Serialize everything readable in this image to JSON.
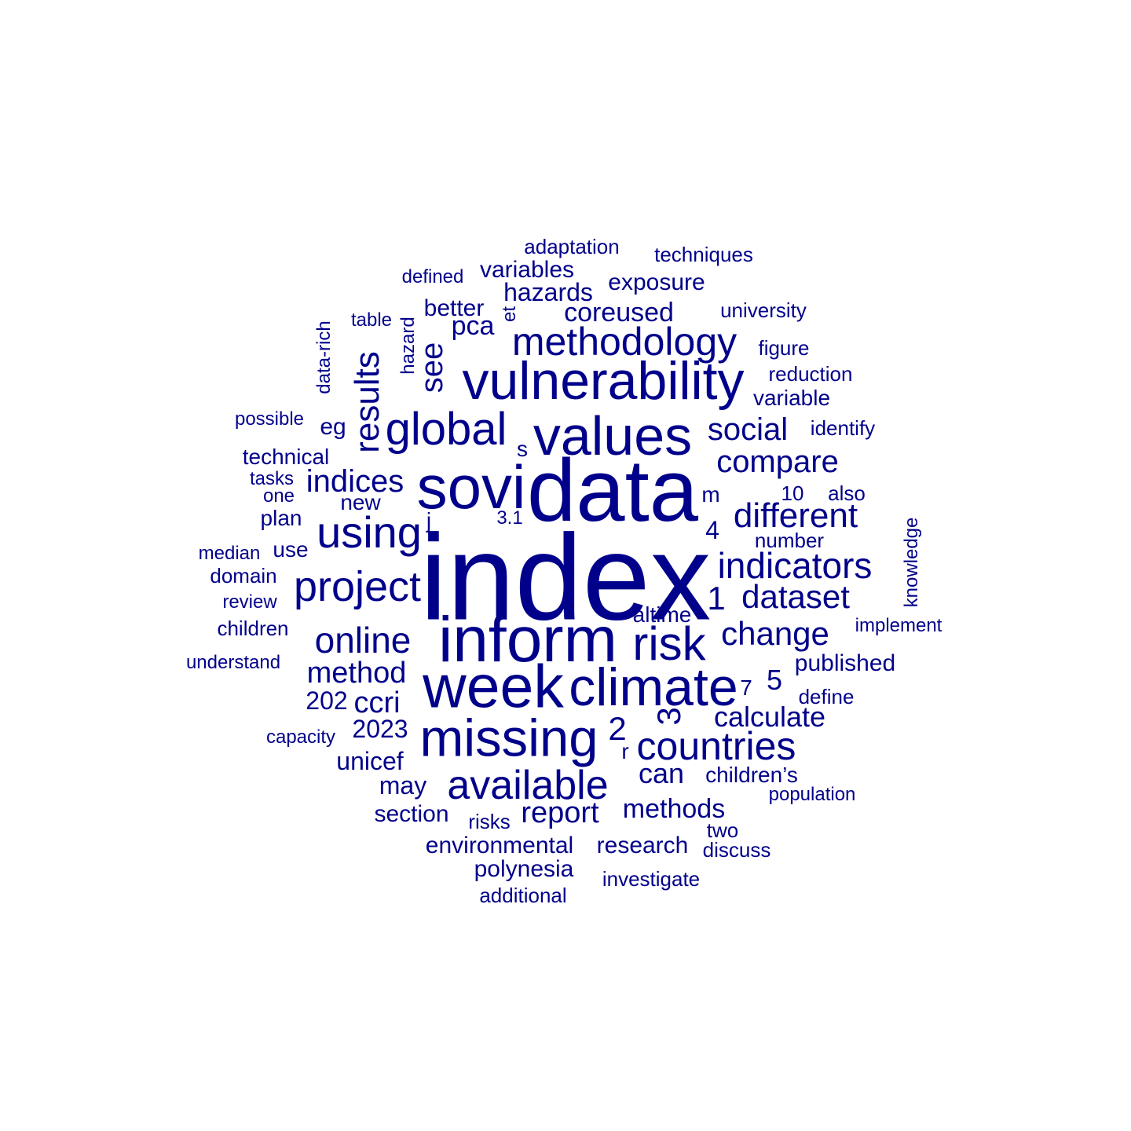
{
  "colors": {
    "primary": "#00008B",
    "background": "#FFFFFF"
  },
  "words": [
    {
      "text": "index",
      "size": 155
    },
    {
      "text": "data",
      "size": 112
    },
    {
      "text": "inform",
      "size": 82
    },
    {
      "text": "sovi",
      "size": 78
    },
    {
      "text": "week",
      "size": 77
    },
    {
      "text": "values",
      "size": 70
    },
    {
      "text": "climate",
      "size": 68
    },
    {
      "text": "vulnerability",
      "size": 68
    },
    {
      "text": "missing",
      "size": 67
    },
    {
      "text": "risk",
      "size": 60
    },
    {
      "text": "global",
      "size": 58
    },
    {
      "text": "using",
      "size": 56
    },
    {
      "text": "project",
      "size": 54
    },
    {
      "text": "available",
      "size": 52
    },
    {
      "text": "methodology",
      "size": 50
    },
    {
      "text": "countries",
      "size": 50
    },
    {
      "text": "indicators",
      "size": 46
    },
    {
      "text": "online",
      "size": 46
    },
    {
      "text": "results",
      "size": 44,
      "vertical": true
    },
    {
      "text": "different",
      "size": 44
    },
    {
      "text": "change",
      "size": 42
    },
    {
      "text": "dataset",
      "size": 42
    },
    {
      "text": "1",
      "size": 42
    },
    {
      "text": "2",
      "size": 42
    },
    {
      "text": "3",
      "size": 42,
      "vertical": true
    },
    {
      "text": "indices",
      "size": 40
    },
    {
      "text": "see",
      "size": 40,
      "vertical": true
    },
    {
      "text": "social",
      "size": 40
    },
    {
      "text": "compare",
      "size": 40
    },
    {
      "text": "method",
      "size": 38
    },
    {
      "text": "ccri",
      "size": 38
    },
    {
      "text": "report",
      "size": 38
    },
    {
      "text": "can",
      "size": 36
    },
    {
      "text": "calculate",
      "size": 36
    },
    {
      "text": "methods",
      "size": 34
    },
    {
      "text": "pca",
      "size": 34
    },
    {
      "text": "coreused",
      "size": 34
    },
    {
      "text": "hazards",
      "size": 32
    },
    {
      "text": "5",
      "size": 36
    },
    {
      "text": "2023",
      "size": 32
    },
    {
      "text": "202",
      "size": 32
    },
    {
      "text": "unicef",
      "size": 32
    },
    {
      "text": "may",
      "size": 32
    },
    {
      "text": "section",
      "size": 30
    },
    {
      "text": "published",
      "size": 30
    },
    {
      "text": "environmental",
      "size": 30
    },
    {
      "text": "research",
      "size": 30
    },
    {
      "text": "polynesia",
      "size": 30
    },
    {
      "text": "exposure",
      "size": 30
    },
    {
      "text": "variables",
      "size": 30
    },
    {
      "text": "better",
      "size": 30
    },
    {
      "text": "eg",
      "size": 30
    },
    {
      "text": "4",
      "size": 32
    },
    {
      "text": "altime",
      "size": 28
    },
    {
      "text": "children’s",
      "size": 28
    },
    {
      "text": "technical",
      "size": 28
    },
    {
      "text": "new",
      "size": 28
    },
    {
      "text": "plan",
      "size": 28
    },
    {
      "text": "use",
      "size": 28
    },
    {
      "text": "children",
      "size": 26
    },
    {
      "text": "domain",
      "size": 26
    },
    {
      "text": "median",
      "size": 24
    },
    {
      "text": "review",
      "size": 24
    },
    {
      "text": "understand",
      "size": 24
    },
    {
      "text": "capacity",
      "size": 24
    },
    {
      "text": "possible",
      "size": 24
    },
    {
      "text": "tasks",
      "size": 24
    },
    {
      "text": "one",
      "size": 24
    },
    {
      "text": "table",
      "size": 24
    },
    {
      "text": "data-rich",
      "size": 24,
      "vertical": true
    },
    {
      "text": "hazard",
      "size": 24,
      "vertical": true
    },
    {
      "text": "et",
      "size": 24,
      "vertical": true
    },
    {
      "text": "defined",
      "size": 24
    },
    {
      "text": "adaptation",
      "size": 26
    },
    {
      "text": "techniques",
      "size": 26
    },
    {
      "text": "university",
      "size": 26
    },
    {
      "text": "figure",
      "size": 26
    },
    {
      "text": "reduction",
      "size": 26
    },
    {
      "text": "variable",
      "size": 28
    },
    {
      "text": "identify",
      "size": 26
    },
    {
      "text": "also",
      "size": 26
    },
    {
      "text": "10",
      "size": 26
    },
    {
      "text": "m",
      "size": 28
    },
    {
      "text": "number",
      "size": 26
    },
    {
      "text": "knowledge",
      "size": 24,
      "vertical": true
    },
    {
      "text": "implement",
      "size": 24
    },
    {
      "text": "define",
      "size": 26
    },
    {
      "text": "7",
      "size": 28
    },
    {
      "text": "population",
      "size": 24
    },
    {
      "text": "two",
      "size": 26
    },
    {
      "text": "discuss",
      "size": 26
    },
    {
      "text": "investigate",
      "size": 26
    },
    {
      "text": "additional",
      "size": 26
    },
    {
      "text": "risks",
      "size": 26
    },
    {
      "text": "s",
      "size": 28
    },
    {
      "text": "j",
      "size": 28
    },
    {
      "text": "r",
      "size": 28
    },
    {
      "text": "3.1",
      "size": 24
    }
  ]
}
